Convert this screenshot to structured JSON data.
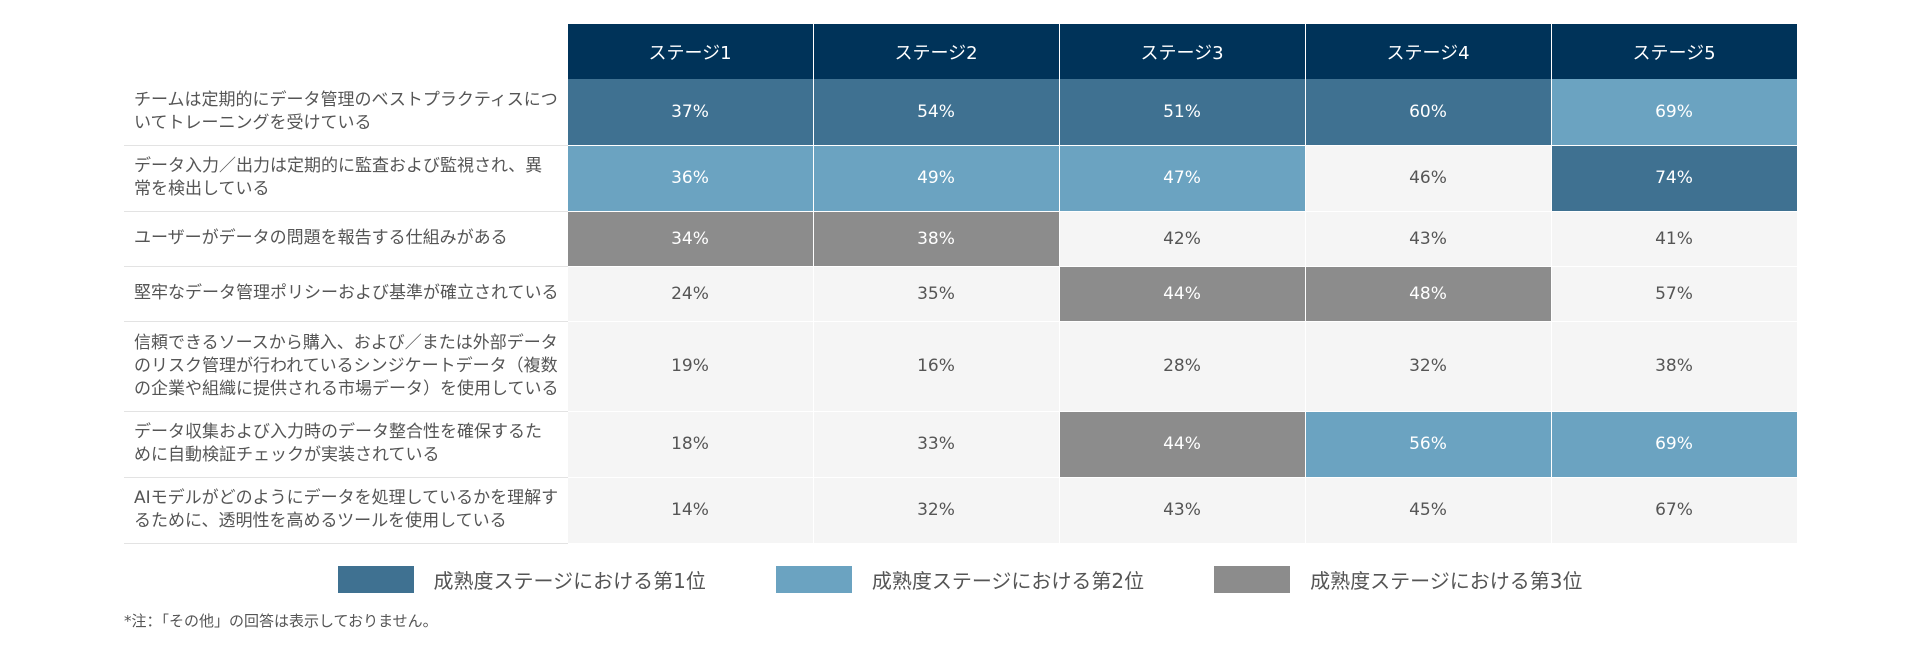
{
  "chart_data": {
    "type": "table",
    "columns": [
      "ステージ1",
      "ステージ2",
      "ステージ3",
      "ステージ4",
      "ステージ5"
    ],
    "rows": [
      {
        "label": "チームは定期的にデータ管理のベストプラクティスについてトレーニングを受けている",
        "values": [
          "37%",
          "54%",
          "51%",
          "60%",
          "69%"
        ],
        "rank": [
          1,
          1,
          1,
          1,
          2
        ]
      },
      {
        "label": "データ入力／出力は定期的に監査および監視され、異常を検出している",
        "values": [
          "36%",
          "49%",
          "47%",
          "46%",
          "74%"
        ],
        "rank": [
          2,
          2,
          2,
          0,
          1
        ]
      },
      {
        "label": "ユーザーがデータの問題を報告する仕組みがある",
        "values": [
          "34%",
          "38%",
          "42%",
          "43%",
          "41%"
        ],
        "rank": [
          3,
          3,
          0,
          0,
          0
        ]
      },
      {
        "label": "堅牢なデータ管理ポリシーおよび基準が確立されている",
        "values": [
          "24%",
          "35%",
          "44%",
          "48%",
          "57%"
        ],
        "rank": [
          0,
          0,
          3,
          3,
          0
        ]
      },
      {
        "label": "信頼できるソースから購入、および／または外部データのリスク管理が行われているシンジケートデータ（複数の企業や組織に提供される市場データ）を使用している",
        "values": [
          "19%",
          "16%",
          "28%",
          "32%",
          "38%"
        ],
        "rank": [
          0,
          0,
          0,
          0,
          0
        ]
      },
      {
        "label": "データ収集および入力時のデータ整合性を確保するために自動検証チェックが実装されている",
        "values": [
          "18%",
          "33%",
          "44%",
          "56%",
          "69%"
        ],
        "rank": [
          0,
          0,
          3,
          2,
          2
        ]
      },
      {
        "label": "AIモデルがどのようにデータを処理しているかを理解するために、透明性を高めるツールを使用している",
        "values": [
          "14%",
          "32%",
          "43%",
          "45%",
          "67%"
        ],
        "rank": [
          0,
          0,
          0,
          0,
          0
        ]
      }
    ],
    "legend": [
      {
        "label": "成熟度ステージにおける第1位",
        "color": "#3f7191"
      },
      {
        "label": "成熟度ステージにおける第2位",
        "color": "#6ba3c1"
      },
      {
        "label": "成熟度ステージにおける第3位",
        "color": "#8c8c8c"
      }
    ],
    "note": "*注：「その他」の回答は表示しておりません。"
  },
  "colors": {
    "header_bg": "#003359",
    "rank1": "#3f7191",
    "rank2": "#6ba3c1",
    "rank3": "#8c8c8c",
    "neutral_cell": "#f5f5f5"
  }
}
